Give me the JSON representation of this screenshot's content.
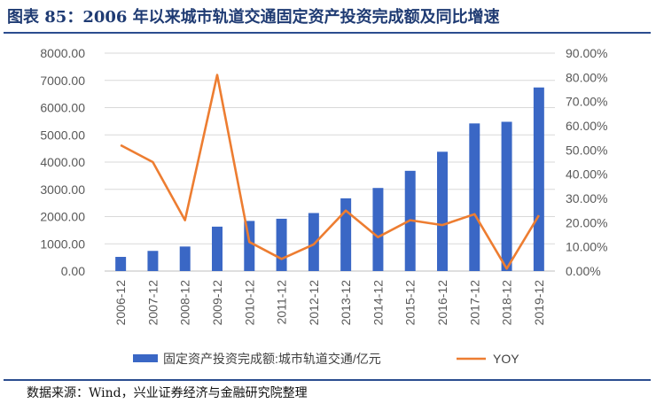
{
  "title": "图表 85：2006 年以来城市轨道交通固定资产投资完成额及同比增速",
  "source": "数据来源：Wind，兴业证券经济与金融研究院整理",
  "chart_data": {
    "type": "bar",
    "categories": [
      "2006-12",
      "2007-12",
      "2008-12",
      "2009-12",
      "2010-12",
      "2011-12",
      "2012-12",
      "2013-12",
      "2014-12",
      "2015-12",
      "2016-12",
      "2017-12",
      "2018-12",
      "2019-12"
    ],
    "series": [
      {
        "name": "固定资产投资完成额:城市轨道交通/亿元",
        "type": "bar",
        "axis": "left",
        "color": "#3a67c5",
        "values": [
          520,
          740,
          900,
          1630,
          1840,
          1920,
          2130,
          2670,
          3050,
          3680,
          4380,
          5420,
          5480,
          6740
        ]
      },
      {
        "name": "YOY",
        "type": "line",
        "axis": "right",
        "color": "#ed7d31",
        "values": [
          0.52,
          0.45,
          0.21,
          0.81,
          0.12,
          0.05,
          0.11,
          0.25,
          0.14,
          0.21,
          0.19,
          0.235,
          0.01,
          0.23
        ]
      }
    ],
    "y_left": {
      "ylim": [
        0,
        8000
      ],
      "ticks": [
        "0.00",
        "1000.00",
        "2000.00",
        "3000.00",
        "4000.00",
        "5000.00",
        "6000.00",
        "7000.00",
        "8000.00"
      ]
    },
    "y_right": {
      "ylim": [
        0,
        0.9
      ],
      "ticks": [
        "0.00%",
        "10.00%",
        "20.00%",
        "30.00%",
        "40.00%",
        "50.00%",
        "60.00%",
        "70.00%",
        "80.00%",
        "90.00%"
      ]
    },
    "grid": "horizontal",
    "legend_position": "bottom"
  }
}
